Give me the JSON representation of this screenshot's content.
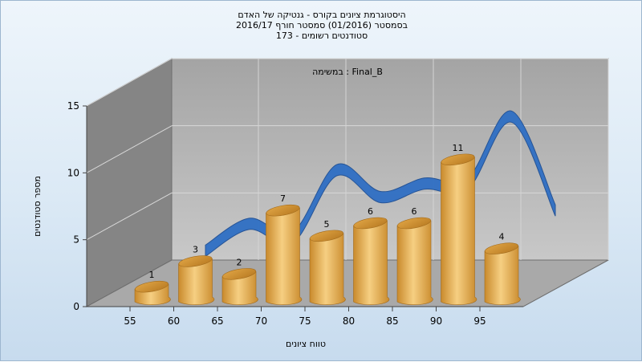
{
  "chart_data": {
    "type": "bar",
    "title_lines": [
      "היסטוגרמת ציונים בקורס - גנטיקה של האדם",
      "בסמסטר  (01/2016)  סמסטר חורף 2016/17",
      "סטודנטים רשומים - 173"
    ],
    "inner_label": "במשימה : Final_B",
    "xlabel": "טווח ציונים",
    "ylabel": "מספר סטודנטים",
    "x_ticks": [
      "55",
      "60",
      "65",
      "70",
      "75",
      "80",
      "85",
      "90",
      "95"
    ],
    "y_ticks": [
      "0",
      "5",
      "10",
      "15"
    ],
    "ylim": [
      0,
      15
    ],
    "bars": [
      {
        "label": "1",
        "value": 1
      },
      {
        "label": "3",
        "value": 3
      },
      {
        "label": "2",
        "value": 2
      },
      {
        "label": "7",
        "value": 7
      },
      {
        "label": "5",
        "value": 5
      },
      {
        "label": "6",
        "value": 6
      },
      {
        "label": "6",
        "value": 6
      },
      {
        "label": "11",
        "value": 11
      },
      {
        "label": "4",
        "value": 4
      }
    ],
    "trend_values": [
      1,
      3,
      2,
      7,
      5,
      6,
      6,
      11,
      4
    ],
    "colors": {
      "bar_light": "#f6cf82",
      "bar_dark": "#c98a2c",
      "trend": "#2f6fc4",
      "wall": "#b9b9b9",
      "side_wall": "#808080",
      "floor": "#a8a8a8"
    }
  }
}
